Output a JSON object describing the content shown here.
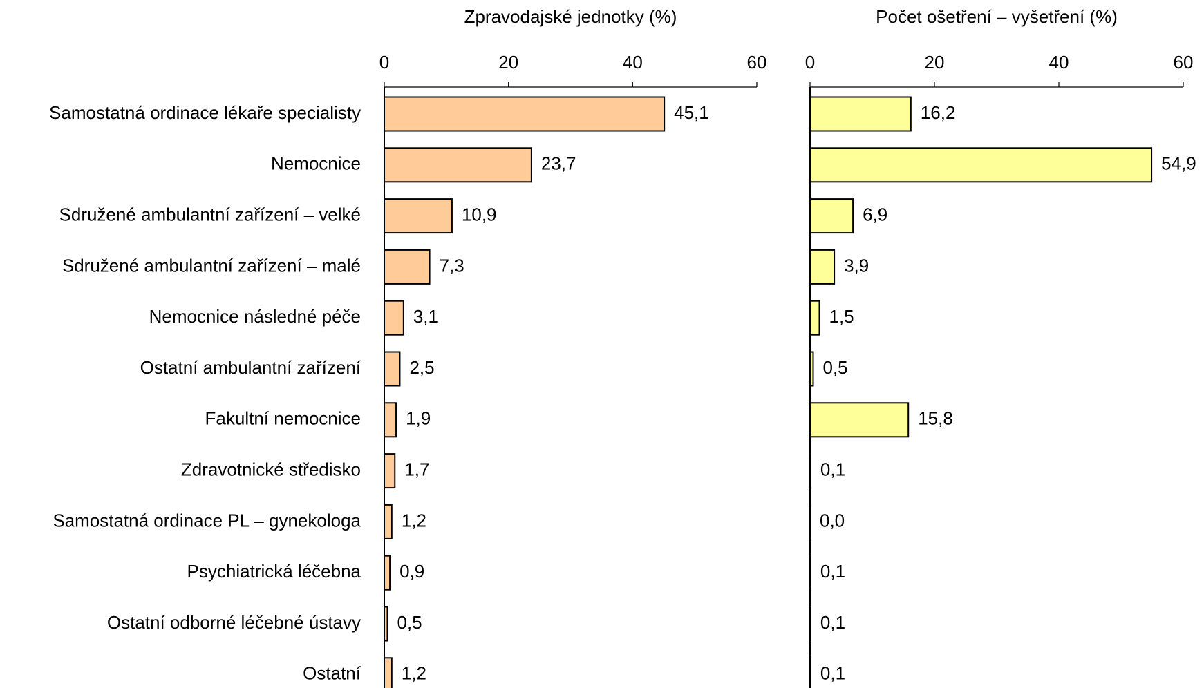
{
  "chart_data": [
    {
      "type": "barh",
      "title": "Zpravodajské jednotky (%)",
      "color": "#ffcc99",
      "categories": [
        "Samostatná ordinace lékaře specialisty",
        "Nemocnice",
        "Sdružené ambulantní zařízení – velké",
        "Sdružené ambulantní zařízení – malé",
        "Nemocnice následné péče",
        "Ostatní ambulantní zařízení",
        "Fakultní nemocnice",
        "Zdravotnické středisko",
        "Samostatná ordinace PL – gynekologa",
        "Psychiatrická léčebna",
        "Ostatní odborné léčebné ústavy",
        "Ostatní"
      ],
      "values": [
        45.1,
        23.7,
        10.9,
        7.3,
        3.1,
        2.5,
        1.9,
        1.7,
        1.2,
        0.9,
        0.5,
        1.2
      ],
      "value_labels": [
        "45,1",
        "23,7",
        "10,9",
        "7,3",
        "3,1",
        "2,5",
        "1,9",
        "1,7",
        "1,2",
        "0,9",
        "0,5",
        "1,2"
      ],
      "xlim": [
        0,
        60
      ],
      "xticks": [
        0,
        20,
        40,
        60
      ]
    },
    {
      "type": "barh",
      "title": "Počet ošetření – vyšetření (%)",
      "color": "#ffff99",
      "values": [
        16.2,
        54.9,
        6.9,
        3.9,
        1.5,
        0.5,
        15.8,
        0.1,
        0.0,
        0.1,
        0.1,
        0.1
      ],
      "value_labels": [
        "16,2",
        "54,9",
        "6,9",
        "3,9",
        "1,5",
        "0,5",
        "15,8",
        "0,1",
        "0,0",
        "0,1",
        "0,1",
        "0,1"
      ],
      "xlim": [
        0,
        60
      ],
      "xticks": [
        0,
        20,
        40,
        60
      ]
    }
  ]
}
